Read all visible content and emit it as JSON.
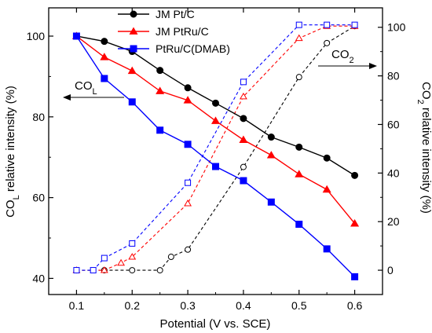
{
  "chart_data": {
    "type": "line",
    "xlabel": "Potential (V vs. SCE)",
    "ylabel_left": "CO",
    "ylabel_left_sub": "L",
    "ylabel_left_rest": " relative intensity (%)",
    "ylabel_right": "CO",
    "ylabel_right_sub": "2",
    "ylabel_right_rest": " relative intensity (%)",
    "xlim": [
      0.05,
      0.65
    ],
    "ylim_left": [
      36,
      107
    ],
    "ylim_right": [
      -10,
      108
    ],
    "x_ticks": [
      0.1,
      0.2,
      0.3,
      0.4,
      0.5,
      0.6
    ],
    "x_tick_labels": [
      "0.1",
      "0.2",
      "0.3",
      "0.4",
      "0.5",
      "0.6"
    ],
    "y_left_ticks": [
      40,
      60,
      80,
      100
    ],
    "y_left_tick_labels": [
      "40",
      "60",
      "80",
      "100"
    ],
    "y_right_ticks": [
      0,
      20,
      40,
      60,
      80,
      100
    ],
    "y_right_tick_labels": [
      "0",
      "20",
      "40",
      "60",
      "80",
      "100"
    ],
    "legend": [
      {
        "name": "JM Pt/C",
        "color": "#000000",
        "marker": "circle"
      },
      {
        "name": "JM PtRu/C",
        "color": "#ff0000",
        "marker": "triangle"
      },
      {
        "name": "PtRu/C(DMAB)",
        "color": "#0000ff",
        "marker": "square"
      }
    ],
    "series": [
      {
        "name": "JM Pt/C",
        "axis": "left",
        "color": "#000000",
        "marker": "circle",
        "filled": true,
        "dashed": false,
        "x": [
          0.1,
          0.15,
          0.2,
          0.25,
          0.3,
          0.35,
          0.4,
          0.45,
          0.5,
          0.55,
          0.6
        ],
        "y": [
          100,
          98.7,
          96.2,
          91.5,
          87.2,
          83.4,
          79.6,
          75.0,
          72.5,
          69.8,
          65.5
        ]
      },
      {
        "name": "JM PtRu/C",
        "axis": "left",
        "color": "#ff0000",
        "marker": "triangle",
        "filled": true,
        "dashed": false,
        "x": [
          0.1,
          0.15,
          0.2,
          0.25,
          0.3,
          0.35,
          0.4,
          0.45,
          0.5,
          0.55,
          0.6
        ],
        "y": [
          100,
          94.8,
          91.4,
          86.4,
          84.1,
          79.0,
          74.3,
          70.5,
          65.8,
          62.0,
          53.6
        ]
      },
      {
        "name": "PtRu/C(DMAB)",
        "axis": "left",
        "color": "#0000ff",
        "marker": "square",
        "filled": true,
        "dashed": false,
        "x": [
          0.1,
          0.15,
          0.2,
          0.25,
          0.3,
          0.35,
          0.4,
          0.45,
          0.5,
          0.55,
          0.6
        ],
        "y": [
          100,
          89.5,
          83.7,
          76.7,
          73.2,
          67.7,
          64.2,
          58.9,
          53.4,
          47.3,
          40.4
        ]
      },
      {
        "name": "JM Pt/C CO2",
        "axis": "right",
        "color": "#000000",
        "marker": "circle",
        "filled": false,
        "dashed": true,
        "x": [
          0.1,
          0.15,
          0.2,
          0.25,
          0.27,
          0.3,
          0.4,
          0.5,
          0.55,
          0.6
        ],
        "y": [
          0,
          0,
          0,
          0,
          5.5,
          8.5,
          42.5,
          79.5,
          93.5,
          100.5
        ]
      },
      {
        "name": "JM PtRu/C CO2",
        "axis": "right",
        "color": "#ff0000",
        "marker": "triangle",
        "filled": false,
        "dashed": true,
        "x": [
          0.1,
          0.15,
          0.18,
          0.2,
          0.3,
          0.4,
          0.5,
          0.55,
          0.6
        ],
        "y": [
          0,
          0,
          3,
          5.5,
          27.5,
          71.5,
          95.5,
          100.5,
          100.5
        ]
      },
      {
        "name": "PtRu/C(DMAB) CO2",
        "axis": "right",
        "color": "#0000ff",
        "marker": "square",
        "filled": false,
        "dashed": true,
        "x": [
          0.1,
          0.13,
          0.15,
          0.2,
          0.3,
          0.4,
          0.5,
          0.55,
          0.6
        ],
        "y": [
          0,
          0,
          5,
          11,
          36,
          77.5,
          101,
          101,
          101
        ]
      }
    ],
    "annotations": [
      {
        "text": "CO",
        "sub": "L",
        "arrow": "left",
        "color": "#000000"
      },
      {
        "text": "CO",
        "sub": "2",
        "arrow": "right",
        "color": "#000000"
      }
    ]
  }
}
